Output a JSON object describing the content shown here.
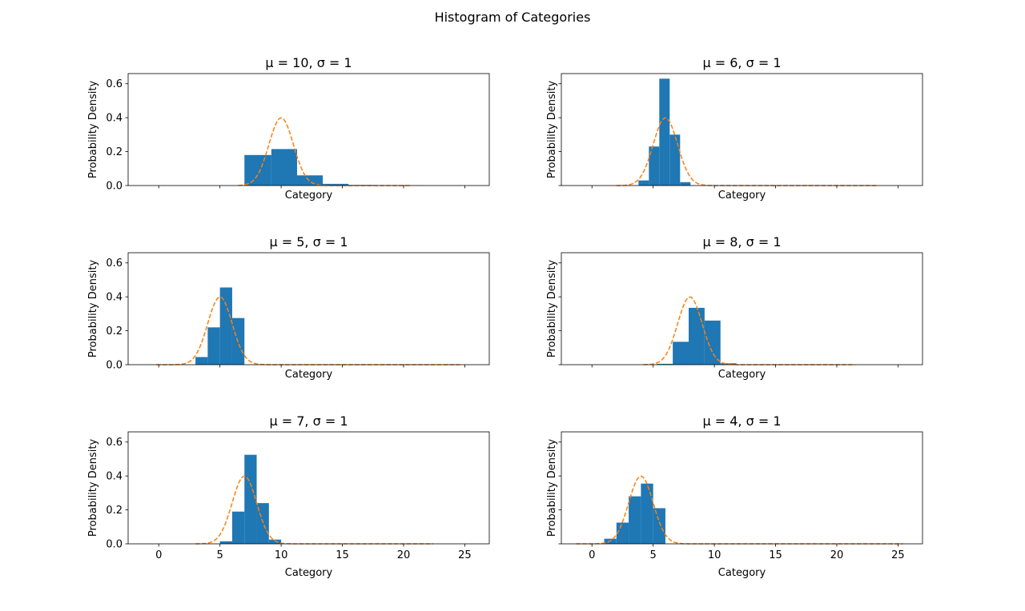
{
  "figure": {
    "suptitle": "Histogram of Categories"
  },
  "colors": {
    "bar": "#1f77b4",
    "curve": "#ff7f0e"
  },
  "chart_data": [
    {
      "type": "bar",
      "title": "μ = 10, σ = 1",
      "xlabel": "Category",
      "ylabel": "Probability Density",
      "xlim": [
        -2.5,
        27
      ],
      "ylim": [
        0,
        0.66
      ],
      "xticks": [
        0,
        5,
        10,
        15,
        20,
        25
      ],
      "xtick_labels": [
        "",
        "",
        "",
        "",
        "",
        ""
      ],
      "yticks": [
        0.0,
        0.2,
        0.4,
        0.6
      ],
      "ytick_labels": [
        "0.0",
        "0.2",
        "0.4",
        "0.6"
      ],
      "bins": [
        {
          "x0": 7.0,
          "x1": 9.2,
          "value": 0.18
        },
        {
          "x0": 9.2,
          "x1": 11.3,
          "value": 0.215
        },
        {
          "x0": 11.3,
          "x1": 13.4,
          "value": 0.06
        },
        {
          "x0": 13.4,
          "x1": 15.5,
          "value": 0.01
        },
        {
          "x0": 15.5,
          "x1": 17.6,
          "value": 0.003
        },
        {
          "x0": 17.6,
          "x1": 19.7,
          "value": 0.001
        },
        {
          "x0": 19.7,
          "x1": 21.8,
          "value": 0.001
        }
      ],
      "curve": {
        "mu": 10,
        "sigma": 1,
        "x_range": [
          6.5,
          20.5
        ]
      }
    },
    {
      "type": "bar",
      "title": "μ = 6, σ = 1",
      "xlabel": "Category",
      "ylabel": "Probability Density",
      "xlim": [
        -2.5,
        27
      ],
      "ylim": [
        0,
        0.66
      ],
      "xticks": [
        0,
        5,
        10,
        15,
        20,
        25
      ],
      "xtick_labels": [
        "",
        "",
        "",
        "",
        "",
        ""
      ],
      "yticks": [
        0.0,
        0.2,
        0.4,
        0.6
      ],
      "ytick_labels": [
        "",
        "",
        "",
        ""
      ],
      "bins": [
        {
          "x0": 3.8,
          "x1": 4.65,
          "value": 0.03
        },
        {
          "x0": 4.65,
          "x1": 5.5,
          "value": 0.23
        },
        {
          "x0": 5.5,
          "x1": 6.35,
          "value": 0.63
        },
        {
          "x0": 6.35,
          "x1": 7.2,
          "value": 0.3
        },
        {
          "x0": 7.2,
          "x1": 8.05,
          "value": 0.02
        }
      ],
      "curve": {
        "mu": 6,
        "sigma": 1,
        "x_range": [
          2,
          23.3
        ]
      }
    },
    {
      "type": "bar",
      "title": "μ = 5, σ = 1",
      "xlabel": "Category",
      "ylabel": "Probability Density",
      "xlim": [
        -2.5,
        27
      ],
      "ylim": [
        0,
        0.66
      ],
      "xticks": [
        0,
        5,
        10,
        15,
        20,
        25
      ],
      "xtick_labels": [
        "",
        "",
        "",
        "",
        "",
        ""
      ],
      "yticks": [
        0.0,
        0.2,
        0.4,
        0.6
      ],
      "ytick_labels": [
        "0.0",
        "0.2",
        "0.4",
        "0.6"
      ],
      "bins": [
        {
          "x0": 3.0,
          "x1": 4.0,
          "value": 0.045
        },
        {
          "x0": 4.0,
          "x1": 5.0,
          "value": 0.22
        },
        {
          "x0": 5.0,
          "x1": 6.0,
          "value": 0.455
        },
        {
          "x0": 6.0,
          "x1": 7.0,
          "value": 0.275
        }
      ],
      "curve": {
        "mu": 5,
        "sigma": 1,
        "x_range": [
          -0.2,
          24.6
        ]
      }
    },
    {
      "type": "bar",
      "title": "μ = 8, σ = 1",
      "xlabel": "Category",
      "ylabel": "Probability Density",
      "xlim": [
        -2.5,
        27
      ],
      "ylim": [
        0,
        0.66
      ],
      "xticks": [
        0,
        5,
        10,
        15,
        20,
        25
      ],
      "xtick_labels": [
        "",
        "",
        "",
        "",
        "",
        ""
      ],
      "yticks": [
        0.0,
        0.2,
        0.4,
        0.6
      ],
      "ytick_labels": [
        "",
        "",
        "",
        ""
      ],
      "bins": [
        {
          "x0": 5.3,
          "x1": 6.6,
          "value": 0.005
        },
        {
          "x0": 6.6,
          "x1": 7.9,
          "value": 0.135
        },
        {
          "x0": 7.9,
          "x1": 9.2,
          "value": 0.335
        },
        {
          "x0": 9.2,
          "x1": 10.5,
          "value": 0.26
        },
        {
          "x0": 10.5,
          "x1": 11.8,
          "value": 0.008
        }
      ],
      "curve": {
        "mu": 8,
        "sigma": 1,
        "x_range": [
          4.2,
          21.5
        ]
      }
    },
    {
      "type": "bar",
      "title": "μ = 7, σ = 1",
      "xlabel": "Category",
      "ylabel": "Probability Density",
      "xlim": [
        -2.5,
        27
      ],
      "ylim": [
        0,
        0.66
      ],
      "xticks": [
        0,
        5,
        10,
        15,
        20,
        25
      ],
      "xtick_labels": [
        "0",
        "5",
        "10",
        "15",
        "20",
        "25"
      ],
      "yticks": [
        0.0,
        0.2,
        0.4,
        0.6
      ],
      "ytick_labels": [
        "0.0",
        "0.2",
        "0.4",
        "0.6"
      ],
      "bins": [
        {
          "x0": 5.0,
          "x1": 6.0,
          "value": 0.015
        },
        {
          "x0": 6.0,
          "x1": 7.0,
          "value": 0.19
        },
        {
          "x0": 7.0,
          "x1": 8.0,
          "value": 0.525
        },
        {
          "x0": 8.0,
          "x1": 9.0,
          "value": 0.24
        },
        {
          "x0": 9.0,
          "x1": 10.0,
          "value": 0.025
        }
      ],
      "curve": {
        "mu": 7,
        "sigma": 1,
        "x_range": [
          3,
          22.4
        ]
      }
    },
    {
      "type": "bar",
      "title": "μ = 4, σ = 1",
      "xlabel": "Category",
      "ylabel": "Probability Density",
      "xlim": [
        -2.5,
        27
      ],
      "ylim": [
        0,
        0.66
      ],
      "xticks": [
        0,
        5,
        10,
        15,
        20,
        25
      ],
      "xtick_labels": [
        "0",
        "5",
        "10",
        "15",
        "20",
        "25"
      ],
      "yticks": [
        0.0,
        0.2,
        0.4,
        0.6
      ],
      "ytick_labels": [
        "",
        "",
        "",
        ""
      ],
      "bins": [
        {
          "x0": 1.0,
          "x1": 2.0,
          "value": 0.03
        },
        {
          "x0": 2.0,
          "x1": 3.0,
          "value": 0.125
        },
        {
          "x0": 3.0,
          "x1": 4.0,
          "value": 0.28
        },
        {
          "x0": 4.0,
          "x1": 5.0,
          "value": 0.355
        },
        {
          "x0": 5.0,
          "x1": 6.0,
          "value": 0.21
        }
      ],
      "curve": {
        "mu": 4,
        "sigma": 1,
        "x_range": [
          -1.3,
          25.4
        ]
      }
    }
  ]
}
